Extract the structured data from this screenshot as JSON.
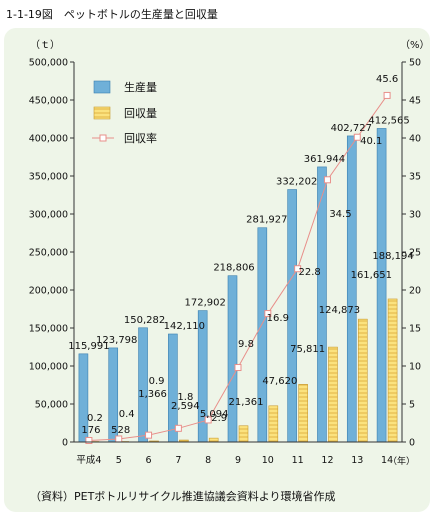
{
  "figure_title": "1-1-19図　ペットボトルの生産量と回収量",
  "source_note": "（資料）PETボトルリサイクル推進協議会資料より環境省作成",
  "colors": {
    "production": "#6fb0d8",
    "collection": "#fbe27e",
    "rate_line": "#e88f8a",
    "panel": "#eef5e8"
  },
  "chart_data": {
    "type": "bar",
    "title": "ペットボトルの生産量と回収量",
    "y_unit_left": "（ｔ）",
    "y_unit_right": "（%）",
    "x_unit": "（年）",
    "categories": [
      "平成4",
      "5",
      "6",
      "7",
      "8",
      "9",
      "10",
      "11",
      "12",
      "13",
      "14"
    ],
    "ylim_left": [
      0,
      500000
    ],
    "ylim_right": [
      0,
      50
    ],
    "left_ticks": [
      "0",
      "50,000",
      "100,000",
      "150,000",
      "200,000",
      "250,000",
      "300,000",
      "350,000",
      "400,000",
      "450,000",
      "500,000"
    ],
    "right_ticks": [
      "0",
      "5",
      "10",
      "15",
      "20",
      "25",
      "30",
      "35",
      "40",
      "45",
      "50"
    ],
    "grid": false,
    "legend_position": "top-left",
    "series": [
      {
        "name": "生産量",
        "type": "bar",
        "values": [
          115991,
          123798,
          150282,
          142110,
          172902,
          218806,
          281927,
          332202,
          361944,
          402727,
          412565
        ],
        "labels": [
          "115,991",
          "123,798",
          "150,282",
          "142,110",
          "172,902",
          "218,806",
          "281,927",
          "332,202",
          "361,944",
          "402,727",
          "412,565"
        ]
      },
      {
        "name": "回収量",
        "type": "bar",
        "values": [
          176,
          528,
          1366,
          2594,
          5094,
          21361,
          47620,
          75811,
          124873,
          161651,
          188194
        ],
        "labels": [
          "176",
          "528",
          "1,366",
          "2,594",
          "5,094",
          "21,361",
          "47,620",
          "75,811",
          "124,873",
          "161,651",
          "188,194"
        ]
      },
      {
        "name": "回収率",
        "type": "line",
        "axis": "right",
        "values": [
          0.2,
          0.4,
          0.9,
          1.8,
          2.9,
          9.8,
          16.9,
          22.8,
          34.5,
          40.1,
          45.6
        ],
        "labels": [
          "0.2",
          "0.4",
          "0.9",
          "1.8",
          "2.9",
          "9.8",
          "16.9",
          "22.8",
          "34.5",
          "40.1",
          "45.6"
        ]
      }
    ]
  }
}
